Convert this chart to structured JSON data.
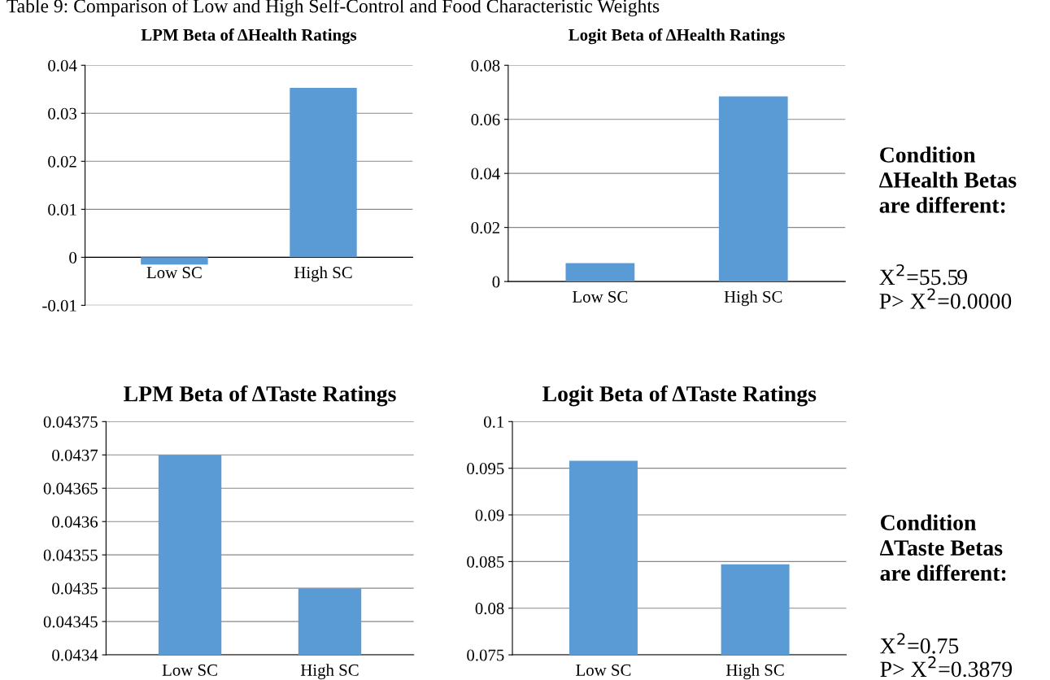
{
  "chart_data": [
    {
      "type": "bar",
      "title": "LPM Beta of ΔHealth Ratings",
      "categories": [
        "Low SC",
        "High SC"
      ],
      "values": [
        -0.0015,
        0.0353
      ],
      "color": "#5b9bd5",
      "ylim": [
        -0.01,
        0.04
      ],
      "yticks": [
        -0.01,
        0,
        0.01,
        0.02,
        0.03,
        0.04
      ],
      "grid": "y",
      "annotations": [
        "Table 9: Comparison of Low and High Self-Control and Food Characteristic Weights"
      ]
    },
    {
      "type": "bar",
      "title": "Logit Beta of ΔHealth Ratings",
      "categories": [
        "Low SC",
        "High SC"
      ],
      "values": [
        0.0068,
        0.0685
      ],
      "color": "#5b9bd5",
      "ylim": [
        0,
        0.08
      ],
      "yticks": [
        0,
        0.02,
        0.04,
        0.06,
        0.08
      ],
      "grid": "y",
      "annotations": [
        "Condition\nΔHealth Betas\nare different:",
        "X$^{2}$=55.59",
        "P> X$^{2}$=0.0000"
      ]
    },
    {
      "type": "bar",
      "title": "LPM Beta of ΔTaste Ratings",
      "categories": [
        "Low SC",
        "High SC"
      ],
      "values": [
        0.0437,
        0.0435
      ],
      "color": "#5b9bd5",
      "ylim": [
        0.0434,
        0.04375
      ],
      "yticks": [
        0.0434,
        0.04345,
        0.0435,
        0.04355,
        0.0436,
        0.04365,
        0.0437,
        0.04375
      ],
      "grid": "y"
    },
    {
      "type": "bar",
      "title": "Logit Beta of ΔTaste Ratings",
      "categories": [
        "Low SC",
        "High SC"
      ],
      "values": [
        0.0958,
        0.0847
      ],
      "color": "#5b9bd5",
      "ylim": [
        0.075,
        0.1
      ],
      "yticks": [
        0.075,
        0.08,
        0.085,
        0.09,
        0.095,
        0.1
      ],
      "grid": "y",
      "annotations": [
        "Condition\nΔTaste Betas\nare different:",
        "X$^{2}$=0.75",
        "P> X$^{2}$=0.3879"
      ]
    }
  ]
}
